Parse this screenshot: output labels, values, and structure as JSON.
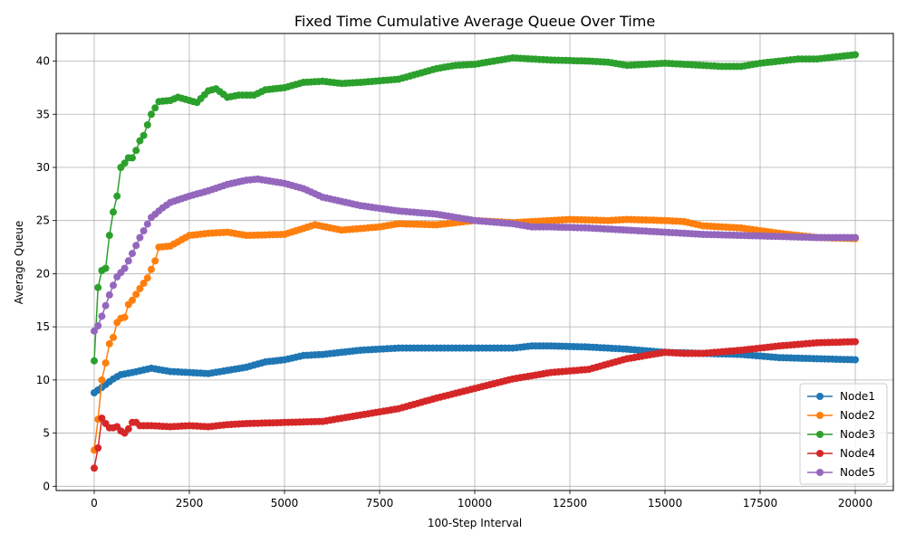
{
  "chart_data": {
    "type": "line",
    "title": "Fixed Time Cumulative Average Queue Over Time",
    "xlabel": "100-Step Interval",
    "ylabel": "Average Queue",
    "xlim": [
      -1000,
      21000
    ],
    "ylim": [
      -0.4,
      42.6
    ],
    "xticks": [
      0,
      2500,
      5000,
      7500,
      10000,
      12500,
      15000,
      17500,
      20000
    ],
    "yticks": [
      0,
      5,
      10,
      15,
      20,
      25,
      30,
      35,
      40
    ],
    "grid": true,
    "legend_position": "lower right",
    "series": [
      {
        "name": "Node1",
        "color": "#1f77b4",
        "points": [
          [
            0,
            8.8
          ],
          [
            200,
            9.3
          ],
          [
            500,
            10.1
          ],
          [
            700,
            10.5
          ],
          [
            1000,
            10.7
          ],
          [
            1500,
            11.1
          ],
          [
            2000,
            10.8
          ],
          [
            2500,
            10.7
          ],
          [
            3000,
            10.6
          ],
          [
            3500,
            10.9
          ],
          [
            4000,
            11.2
          ],
          [
            4500,
            11.7
          ],
          [
            5000,
            11.9
          ],
          [
            5500,
            12.3
          ],
          [
            6000,
            12.4
          ],
          [
            7000,
            12.8
          ],
          [
            8000,
            13.0
          ],
          [
            9000,
            13.0
          ],
          [
            10000,
            13.0
          ],
          [
            11000,
            13.0
          ],
          [
            11500,
            13.2
          ],
          [
            12000,
            13.2
          ],
          [
            13000,
            13.1
          ],
          [
            14000,
            12.9
          ],
          [
            15000,
            12.6
          ],
          [
            16000,
            12.5
          ],
          [
            17000,
            12.4
          ],
          [
            18000,
            12.1
          ],
          [
            19000,
            12.0
          ],
          [
            20000,
            11.9
          ]
        ]
      },
      {
        "name": "Node2",
        "color": "#ff7f0e",
        "points": [
          [
            0,
            3.4
          ],
          [
            100,
            6.3
          ],
          [
            200,
            10.0
          ],
          [
            300,
            11.6
          ],
          [
            400,
            13.4
          ],
          [
            500,
            14.0
          ],
          [
            600,
            15.4
          ],
          [
            700,
            15.8
          ],
          [
            800,
            15.9
          ],
          [
            900,
            17.1
          ],
          [
            1000,
            17.5
          ],
          [
            1200,
            18.6
          ],
          [
            1400,
            19.6
          ],
          [
            1600,
            21.2
          ],
          [
            1700,
            22.5
          ],
          [
            2000,
            22.6
          ],
          [
            2500,
            23.6
          ],
          [
            3000,
            23.8
          ],
          [
            3500,
            23.9
          ],
          [
            4000,
            23.6
          ],
          [
            5000,
            23.7
          ],
          [
            5800,
            24.6
          ],
          [
            6500,
            24.1
          ],
          [
            7500,
            24.4
          ],
          [
            8000,
            24.7
          ],
          [
            9000,
            24.6
          ],
          [
            10000,
            25.0
          ],
          [
            11000,
            24.8
          ],
          [
            12000,
            25.0
          ],
          [
            12500,
            25.1
          ],
          [
            13500,
            25.0
          ],
          [
            14000,
            25.1
          ],
          [
            15000,
            25.0
          ],
          [
            15500,
            24.9
          ],
          [
            16000,
            24.5
          ],
          [
            17000,
            24.3
          ],
          [
            18000,
            23.8
          ],
          [
            19000,
            23.4
          ],
          [
            20000,
            23.3
          ]
        ]
      },
      {
        "name": "Node3",
        "color": "#2ca02c",
        "points": [
          [
            0,
            11.8
          ],
          [
            100,
            18.7
          ],
          [
            200,
            20.3
          ],
          [
            300,
            20.5
          ],
          [
            400,
            23.6
          ],
          [
            500,
            25.8
          ],
          [
            600,
            27.3
          ],
          [
            700,
            30.0
          ],
          [
            800,
            30.4
          ],
          [
            900,
            30.9
          ],
          [
            1000,
            30.9
          ],
          [
            1100,
            31.6
          ],
          [
            1200,
            32.5
          ],
          [
            1300,
            33.0
          ],
          [
            1400,
            34.0
          ],
          [
            1500,
            35.0
          ],
          [
            1600,
            35.6
          ],
          [
            1700,
            36.2
          ],
          [
            2000,
            36.3
          ],
          [
            2200,
            36.6
          ],
          [
            2700,
            36.1
          ],
          [
            3000,
            37.2
          ],
          [
            3200,
            37.4
          ],
          [
            3500,
            36.6
          ],
          [
            3800,
            36.8
          ],
          [
            4200,
            36.8
          ],
          [
            4500,
            37.3
          ],
          [
            5000,
            37.5
          ],
          [
            5500,
            38.0
          ],
          [
            6000,
            38.1
          ],
          [
            6500,
            37.9
          ],
          [
            7000,
            38.0
          ],
          [
            8000,
            38.3
          ],
          [
            8500,
            38.8
          ],
          [
            9000,
            39.3
          ],
          [
            9500,
            39.6
          ],
          [
            10000,
            39.7
          ],
          [
            10500,
            40.0
          ],
          [
            11000,
            40.3
          ],
          [
            11500,
            40.2
          ],
          [
            12000,
            40.1
          ],
          [
            13000,
            40.0
          ],
          [
            13500,
            39.9
          ],
          [
            14000,
            39.6
          ],
          [
            14500,
            39.7
          ],
          [
            15000,
            39.8
          ],
          [
            15500,
            39.7
          ],
          [
            16000,
            39.6
          ],
          [
            16500,
            39.5
          ],
          [
            17000,
            39.5
          ],
          [
            17500,
            39.8
          ],
          [
            18000,
            40.0
          ],
          [
            18500,
            40.2
          ],
          [
            19000,
            40.2
          ],
          [
            19500,
            40.4
          ],
          [
            20000,
            40.6
          ]
        ]
      },
      {
        "name": "Node4",
        "color": "#d62728",
        "points": [
          [
            0,
            1.7
          ],
          [
            100,
            3.6
          ],
          [
            200,
            6.4
          ],
          [
            300,
            5.9
          ],
          [
            400,
            5.5
          ],
          [
            500,
            5.5
          ],
          [
            600,
            5.6
          ],
          [
            700,
            5.2
          ],
          [
            800,
            5.0
          ],
          [
            900,
            5.4
          ],
          [
            1000,
            6.0
          ],
          [
            1100,
            6.0
          ],
          [
            1200,
            5.7
          ],
          [
            1500,
            5.7
          ],
          [
            2000,
            5.6
          ],
          [
            2500,
            5.7
          ],
          [
            3000,
            5.6
          ],
          [
            3500,
            5.8
          ],
          [
            4000,
            5.9
          ],
          [
            5000,
            6.0
          ],
          [
            6000,
            6.1
          ],
          [
            7000,
            6.7
          ],
          [
            8000,
            7.3
          ],
          [
            9000,
            8.3
          ],
          [
            10000,
            9.2
          ],
          [
            11000,
            10.1
          ],
          [
            12000,
            10.7
          ],
          [
            13000,
            11.0
          ],
          [
            14000,
            12.0
          ],
          [
            15000,
            12.6
          ],
          [
            15500,
            12.5
          ],
          [
            16000,
            12.5
          ],
          [
            17000,
            12.8
          ],
          [
            18000,
            13.2
          ],
          [
            19000,
            13.5
          ],
          [
            20000,
            13.6
          ]
        ]
      },
      {
        "name": "Node5",
        "color": "#9467bd",
        "points": [
          [
            0,
            14.6
          ],
          [
            100,
            15.1
          ],
          [
            200,
            16.0
          ],
          [
            300,
            17.0
          ],
          [
            400,
            18.0
          ],
          [
            500,
            18.9
          ],
          [
            600,
            19.7
          ],
          [
            800,
            20.5
          ],
          [
            1000,
            21.9
          ],
          [
            1200,
            23.4
          ],
          [
            1500,
            25.3
          ],
          [
            1800,
            26.2
          ],
          [
            2000,
            26.7
          ],
          [
            2500,
            27.3
          ],
          [
            3000,
            27.8
          ],
          [
            3500,
            28.4
          ],
          [
            4000,
            28.8
          ],
          [
            4300,
            28.9
          ],
          [
            5000,
            28.5
          ],
          [
            5500,
            28.0
          ],
          [
            6000,
            27.2
          ],
          [
            6500,
            26.8
          ],
          [
            7000,
            26.4
          ],
          [
            8000,
            25.9
          ],
          [
            9000,
            25.6
          ],
          [
            10000,
            25.0
          ],
          [
            11000,
            24.7
          ],
          [
            11500,
            24.4
          ],
          [
            12000,
            24.4
          ],
          [
            13000,
            24.3
          ],
          [
            14000,
            24.1
          ],
          [
            15000,
            23.9
          ],
          [
            16000,
            23.7
          ],
          [
            17000,
            23.6
          ],
          [
            18000,
            23.5
          ],
          [
            19000,
            23.4
          ],
          [
            20000,
            23.4
          ]
        ]
      }
    ]
  }
}
